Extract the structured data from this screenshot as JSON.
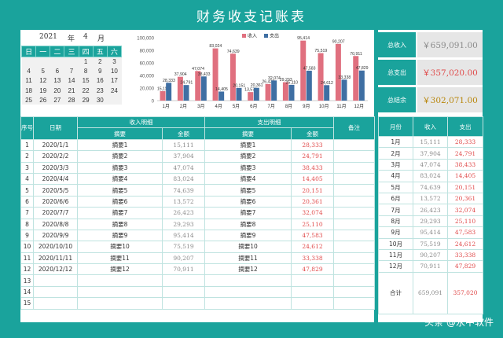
{
  "title": "财务收支记账表",
  "calendar": {
    "year": "2021",
    "year_suffix": "年",
    "month": "4",
    "month_suffix": "月",
    "weekdays": [
      "日",
      "一",
      "二",
      "三",
      "四",
      "五",
      "六"
    ],
    "weeks": [
      [
        "",
        "",
        "",
        "",
        "1",
        "2",
        "3"
      ],
      [
        "4",
        "5",
        "6",
        "7",
        "8",
        "9",
        "10"
      ],
      [
        "11",
        "12",
        "13",
        "14",
        "15",
        "16",
        "17"
      ],
      [
        "18",
        "19",
        "20",
        "21",
        "22",
        "23",
        "24"
      ],
      [
        "25",
        "26",
        "27",
        "28",
        "29",
        "30",
        ""
      ]
    ]
  },
  "colors": {
    "accent": "#1aa39c",
    "income": "#e0707f",
    "expense": "#3f6fa3"
  },
  "chart_data": {
    "type": "bar",
    "categories": [
      "1月",
      "2月",
      "3月",
      "4月",
      "5月",
      "6月",
      "7月",
      "8月",
      "9月",
      "10月",
      "11月",
      "12月"
    ],
    "series": [
      {
        "name": "收入",
        "values": [
          15111,
          37904,
          47074,
          83024,
          74639,
          13572,
          26423,
          29293,
          95414,
          75519,
          90207,
          70911
        ]
      },
      {
        "name": "支出",
        "values": [
          28333,
          24791,
          38433,
          14405,
          20151,
          20361,
          32074,
          25110,
          47583,
          24612,
          33338,
          47829
        ]
      }
    ],
    "value_labels": [
      [
        "15,111",
        "37,904",
        "47,074",
        "83,024",
        "74,639",
        "13,572",
        "26,423",
        "29,293",
        "95,414",
        "75,519",
        "90,207",
        "70,911"
      ],
      [
        "28,333",
        "24,791",
        "38,433",
        "14,405",
        "20,151",
        "20,361",
        "32,074",
        "25,110",
        "47,583",
        "24,612",
        "33,338",
        "47,829"
      ]
    ],
    "yticks": [
      "0",
      "20,000",
      "40,000",
      "60,000",
      "80,000",
      "100,000"
    ],
    "ylim": [
      0,
      100000
    ],
    "legend_position": "top"
  },
  "summary": [
    {
      "label": "总收入",
      "value": "￥659,091.00"
    },
    {
      "label": "总支出",
      "value": "￥357,020.00"
    },
    {
      "label": "总结余",
      "value": "￥302,071.00"
    }
  ],
  "ledger": {
    "headers": {
      "index": "序号",
      "date": "日期",
      "income_group": "收入明细",
      "expense_group": "支出明细",
      "note": "备注",
      "summary": "摘要",
      "amount": "金额"
    },
    "rows": [
      [
        "1",
        "2020/1/1",
        "摘要1",
        "15,111",
        "摘要1",
        "28,333"
      ],
      [
        "2",
        "2020/2/2",
        "摘要2",
        "37,904",
        "摘要2",
        "24,791"
      ],
      [
        "3",
        "2020/3/3",
        "摘要3",
        "47,074",
        "摘要3",
        "38,433"
      ],
      [
        "4",
        "2020/4/4",
        "摘要4",
        "83,024",
        "摘要4",
        "14,405"
      ],
      [
        "5",
        "2020/5/5",
        "摘要5",
        "74,639",
        "摘要5",
        "20,151"
      ],
      [
        "6",
        "2020/6/6",
        "摘要6",
        "13,572",
        "摘要6",
        "20,361"
      ],
      [
        "7",
        "2020/7/7",
        "摘要7",
        "26,423",
        "摘要7",
        "32,074"
      ],
      [
        "8",
        "2020/8/8",
        "摘要8",
        "29,293",
        "摘要8",
        "25,110"
      ],
      [
        "9",
        "2020/9/9",
        "摘要9",
        "95,414",
        "摘要9",
        "47,583"
      ],
      [
        "10",
        "2020/10/10",
        "摘要10",
        "75,519",
        "摘要10",
        "24,612"
      ],
      [
        "11",
        "2020/11/11",
        "摘要11",
        "90,207",
        "摘要11",
        "33,338"
      ],
      [
        "12",
        "2020/12/12",
        "摘要12",
        "70,911",
        "摘要12",
        "47,829"
      ],
      [
        "13",
        "",
        "",
        "",
        "",
        ""
      ],
      [
        "14",
        "",
        "",
        "",
        "",
        ""
      ],
      [
        "15",
        "",
        "",
        "",
        "",
        ""
      ]
    ]
  },
  "monthly": {
    "headers": {
      "month": "月份",
      "income": "收入",
      "expense": "支出"
    },
    "rows": [
      [
        "1月",
        "15,111",
        "28,333"
      ],
      [
        "2月",
        "37,904",
        "24,791"
      ],
      [
        "3月",
        "47,074",
        "38,433"
      ],
      [
        "4月",
        "83,024",
        "14,405"
      ],
      [
        "5月",
        "74,639",
        "20,151"
      ],
      [
        "6月",
        "13,572",
        "20,361"
      ],
      [
        "7月",
        "26,423",
        "32,074"
      ],
      [
        "8月",
        "29,293",
        "25,110"
      ],
      [
        "9月",
        "95,414",
        "47,583"
      ],
      [
        "10月",
        "75,519",
        "24,612"
      ],
      [
        "11月",
        "90,207",
        "33,338"
      ],
      [
        "12月",
        "70,911",
        "47,829"
      ]
    ],
    "total": {
      "label": "合计",
      "income": "659,091",
      "expense": "357,020"
    }
  },
  "watermark": "头条 @永中软件"
}
